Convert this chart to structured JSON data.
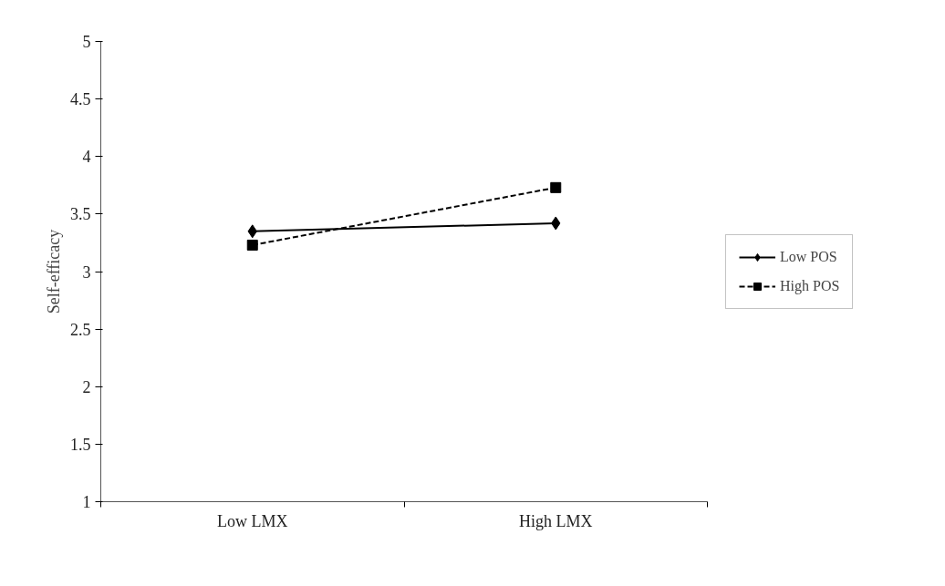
{
  "chart_data": {
    "type": "line",
    "ylabel": "Self-efficacy",
    "categories": [
      "Low LMX",
      "High LMX"
    ],
    "series": [
      {
        "name": "Low POS",
        "color": "#000000",
        "values": [
          3.35,
          3.42
        ],
        "marker": "diamond",
        "line_style": "solid"
      },
      {
        "name": "High POS",
        "color": "#000000",
        "values": [
          3.23,
          3.73
        ],
        "marker": "square",
        "line_style": "dashed"
      }
    ],
    "ylim": [
      1,
      5
    ],
    "yticks": [
      1,
      1.5,
      2,
      2.5,
      3,
      3.5,
      4,
      4.5,
      5
    ],
    "grid": false,
    "legend": "right"
  }
}
